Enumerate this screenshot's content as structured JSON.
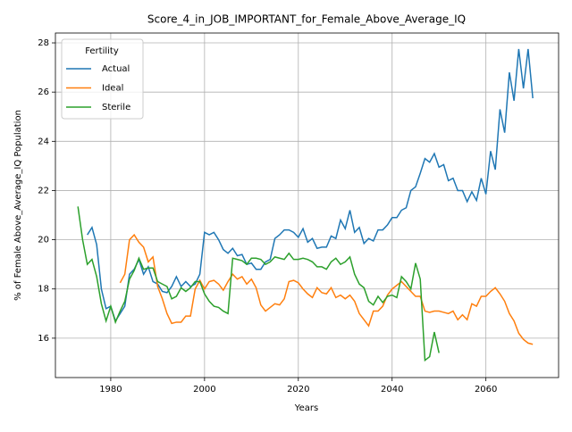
{
  "chart_data": {
    "type": "line",
    "title": "Score_4_in_JOB_IMPORTANT_for_Female_Above_Average_IQ",
    "xlabel": "Years",
    "ylabel": "% of Female Above_Average_IQ Population",
    "legend_title": "Fertility",
    "legend": "upper left",
    "grid": true,
    "xlim": [
      1968.2,
      2075.5
    ],
    "xticks": [
      1980,
      2000,
      2020,
      2040,
      2060
    ],
    "ylim": [
      14.4,
      28.4
    ],
    "yticks": [
      16,
      18,
      20,
      22,
      24,
      26,
      28
    ],
    "x": [
      1973,
      1974,
      1975,
      1976,
      1977,
      1978,
      1979,
      1980,
      1981,
      1982,
      1983,
      1984,
      1985,
      1986,
      1987,
      1988,
      1989,
      1990,
      1991,
      1992,
      1993,
      1994,
      1995,
      1996,
      1997,
      1998,
      1999,
      2000,
      2001,
      2002,
      2003,
      2004,
      2005,
      2006,
      2007,
      2008,
      2009,
      2010,
      2011,
      2012,
      2013,
      2014,
      2015,
      2016,
      2017,
      2018,
      2019,
      2020,
      2021,
      2022,
      2023,
      2024,
      2025,
      2026,
      2027,
      2028,
      2029,
      2030,
      2031,
      2032,
      2033,
      2034,
      2035,
      2036,
      2037,
      2038,
      2039,
      2040,
      2041,
      2042,
      2043,
      2044,
      2045,
      2046,
      2047,
      2048,
      2049,
      2050,
      2051,
      2052,
      2053,
      2054,
      2055,
      2056,
      2057,
      2058,
      2059,
      2060,
      2061,
      2062,
      2063,
      2064,
      2065,
      2066,
      2067,
      2068,
      2069,
      2070
    ],
    "series": [
      {
        "name": "Actual",
        "color": "#1f77b4",
        "values": [
          null,
          null,
          20.2,
          20.5,
          19.8,
          18.0,
          17.2,
          17.3,
          16.7,
          17.0,
          17.3,
          18.6,
          18.8,
          19.2,
          18.6,
          18.9,
          18.3,
          18.2,
          17.9,
          17.85,
          18.1,
          18.5,
          18.1,
          18.3,
          18.1,
          18.2,
          18.6,
          20.3,
          20.2,
          20.3,
          20.0,
          19.6,
          19.45,
          19.65,
          19.35,
          19.4,
          19.0,
          19.05,
          18.8,
          18.8,
          19.1,
          19.2,
          20.05,
          20.2,
          20.4,
          20.4,
          20.3,
          20.1,
          20.45,
          19.9,
          20.05,
          19.65,
          19.7,
          19.7,
          20.15,
          20.05,
          20.8,
          20.45,
          21.2,
          20.3,
          20.5,
          19.85,
          20.05,
          19.95,
          20.4,
          20.4,
          20.6,
          20.9,
          20.9,
          21.2,
          21.3,
          22.0,
          22.15,
          22.7,
          23.3,
          23.15,
          23.5,
          22.95,
          23.05,
          22.4,
          22.5,
          22.0,
          22.0,
          21.55,
          21.95,
          21.6,
          22.5,
          21.85,
          23.6,
          22.85,
          25.3,
          24.35,
          26.8,
          25.65,
          27.75,
          26.15,
          27.75,
          25.75
        ]
      },
      {
        "name": "Ideal",
        "color": "#ff7f0e",
        "values": [
          null,
          null,
          null,
          null,
          null,
          null,
          null,
          null,
          null,
          18.25,
          18.6,
          20.0,
          20.2,
          19.9,
          19.7,
          19.1,
          19.3,
          18.1,
          17.6,
          17.0,
          16.6,
          16.65,
          16.65,
          16.9,
          16.9,
          18.0,
          18.35,
          18.0,
          18.3,
          18.35,
          18.2,
          17.95,
          18.3,
          18.6,
          18.4,
          18.5,
          18.2,
          18.4,
          18.05,
          17.35,
          17.1,
          17.25,
          17.4,
          17.35,
          17.6,
          18.3,
          18.35,
          18.25,
          18.0,
          17.8,
          17.65,
          18.05,
          17.85,
          17.8,
          18.05,
          17.65,
          17.75,
          17.6,
          17.75,
          17.5,
          17.0,
          16.75,
          16.5,
          17.1,
          17.1,
          17.3,
          17.75,
          18.0,
          18.15,
          18.3,
          18.1,
          17.9,
          17.7,
          17.7,
          17.1,
          17.05,
          17.1,
          17.1,
          17.05,
          17.0,
          17.1,
          16.75,
          16.95,
          16.75,
          17.4,
          17.3,
          17.7,
          17.7,
          17.9,
          18.05,
          17.8,
          17.5,
          17.0,
          16.7,
          16.2,
          15.95,
          15.8,
          15.75
        ]
      },
      {
        "name": "Sterile",
        "color": "#2ca02c",
        "values": [
          21.35,
          20.0,
          19.0,
          19.2,
          18.5,
          17.4,
          16.7,
          17.3,
          16.65,
          17.1,
          17.5,
          18.4,
          18.75,
          19.25,
          18.8,
          18.85,
          18.85,
          18.3,
          18.2,
          18.1,
          17.6,
          17.7,
          18.05,
          17.9,
          18.05,
          18.3,
          18.3,
          17.8,
          17.5,
          17.3,
          17.25,
          17.1,
          17.0,
          19.25,
          19.2,
          19.15,
          19.0,
          19.25,
          19.25,
          19.2,
          19.0,
          19.1,
          19.3,
          19.25,
          19.2,
          19.45,
          19.2,
          19.2,
          19.25,
          19.2,
          19.1,
          18.9,
          18.9,
          18.8,
          19.1,
          19.25,
          19.0,
          19.1,
          19.3,
          18.6,
          18.2,
          18.05,
          17.5,
          17.35,
          17.7,
          17.45,
          17.7,
          17.75,
          17.65,
          18.5,
          18.3,
          18.0,
          19.05,
          18.4,
          15.1,
          15.25,
          16.25,
          15.4,
          null,
          null,
          null,
          null,
          null,
          null,
          null,
          null,
          null,
          null,
          null,
          null,
          null,
          null,
          null,
          null,
          null,
          null,
          null,
          null
        ]
      }
    ]
  }
}
